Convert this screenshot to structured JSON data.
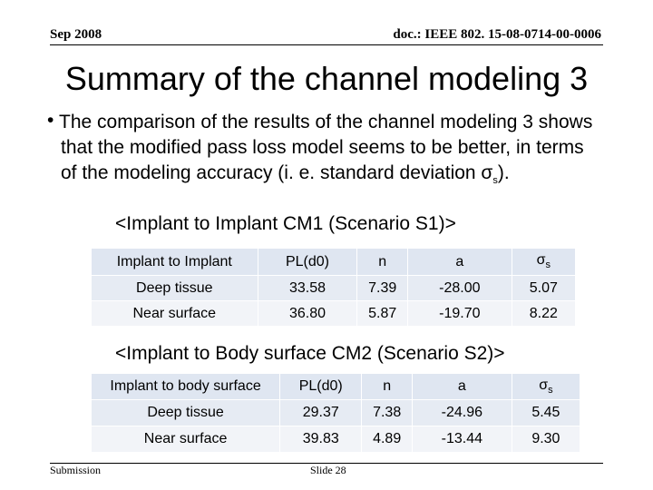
{
  "header": {
    "left": "Sep 2008",
    "right": "doc.: IEEE 802. 15-08-0714-00-0006"
  },
  "title": "Summary of the channel modeling 3",
  "bullet": {
    "text": "The comparison of the results of the channel modeling 3 shows that the modified pass loss model seems to be better, in terms of the modeling accuracy (i. e. standard deviation σ",
    "sub": "s",
    "tail": ")."
  },
  "table1": {
    "caption": "<Implant to Implant CM1 (Scenario S1)>",
    "header": [
      "Implant to Implant",
      "PL(d0)",
      "n",
      "a",
      "σ"
    ],
    "header_sub": "s",
    "rows": [
      [
        "Deep tissue",
        "33.58",
        "7.39",
        "-28.00",
        "5.07"
      ],
      [
        "Near surface",
        "36.80",
        "5.87",
        "-19.70",
        "8.22"
      ]
    ]
  },
  "table2": {
    "caption": "<Implant to Body surface CM2 (Scenario S2)>",
    "header": [
      "Implant to body surface",
      "PL(d0)",
      "n",
      "a",
      "σ"
    ],
    "header_sub": "s",
    "rows": [
      [
        "Deep tissue",
        "29.37",
        "7.38",
        "-24.96",
        "5.45"
      ],
      [
        "Near surface",
        "39.83",
        "4.89",
        "-13.44",
        "9.30"
      ]
    ]
  },
  "footer": {
    "left": "Submission",
    "center": "Slide 28"
  }
}
